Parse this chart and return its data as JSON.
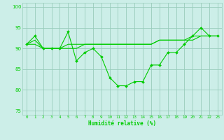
{
  "xlabel": "Humidité relative (%)",
  "background_color": "#cceee8",
  "grid_color": "#99ccbb",
  "line_color": "#00cc00",
  "ylim": [
    74,
    101
  ],
  "xlim": [
    -0.5,
    23.5
  ],
  "yticks": [
    75,
    80,
    85,
    90,
    95,
    100
  ],
  "xticks": [
    0,
    1,
    2,
    3,
    4,
    5,
    6,
    7,
    8,
    9,
    10,
    11,
    12,
    13,
    14,
    15,
    16,
    17,
    18,
    19,
    20,
    21,
    22,
    23
  ],
  "series1": {
    "x": [
      0,
      1,
      2,
      3,
      4,
      5,
      6,
      7,
      8,
      9,
      10,
      11,
      12,
      13,
      14,
      15,
      16,
      17,
      18,
      19,
      20,
      21,
      22,
      23
    ],
    "y": [
      91,
      93,
      90,
      90,
      90,
      94,
      87,
      89,
      90,
      88,
      83,
      81,
      81,
      82,
      82,
      86,
      86,
      89,
      89,
      91,
      93,
      95,
      93,
      93
    ]
  },
  "series2": {
    "x": [
      0,
      1,
      2,
      3,
      4,
      5,
      6,
      7,
      8,
      9,
      10,
      11,
      12,
      13,
      14,
      15,
      16,
      17,
      18,
      19,
      20,
      21,
      22,
      23
    ],
    "y": [
      91,
      92,
      90,
      90,
      90,
      91,
      91,
      91,
      91,
      91,
      91,
      91,
      91,
      91,
      91,
      91,
      92,
      92,
      92,
      92,
      92,
      93,
      93,
      93
    ]
  },
  "series3": {
    "x": [
      0,
      1,
      2,
      3,
      4,
      5,
      6,
      7,
      8,
      9,
      10,
      11,
      12,
      13,
      14,
      15,
      16,
      17,
      18,
      19,
      20,
      21,
      22,
      23
    ],
    "y": [
      91,
      91,
      90,
      90,
      90,
      90,
      90,
      91,
      91,
      91,
      91,
      91,
      91,
      91,
      91,
      91,
      92,
      92,
      92,
      92,
      93,
      93,
      93,
      93
    ]
  }
}
